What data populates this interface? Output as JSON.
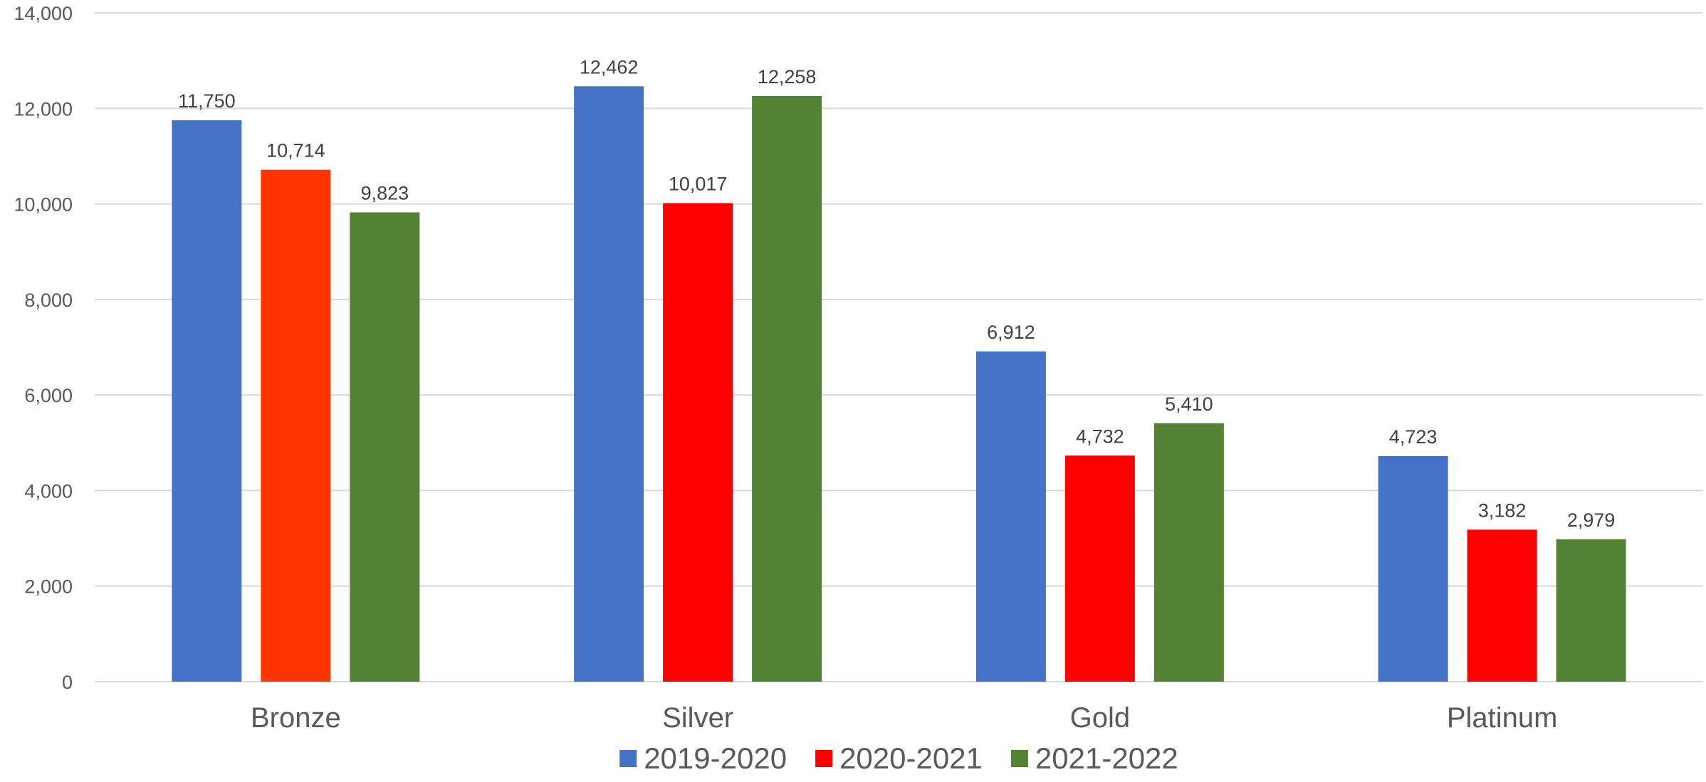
{
  "chart_data": {
    "type": "bar",
    "title": "",
    "xlabel": "",
    "ylabel": "",
    "categories": [
      "Bronze",
      "Silver",
      "Gold",
      "Platinum"
    ],
    "series": [
      {
        "name": "2019-2020",
        "color": "#4472c4",
        "values": [
          11750,
          12462,
          6912,
          4723
        ],
        "labels": [
          "11,750",
          "12,462",
          "6,912",
          "4,723"
        ]
      },
      {
        "name": "2020-2021",
        "color": "#ff0000",
        "bar_colors": [
          "#ff3300",
          "#ff0000",
          "#ff0000",
          "#ff0000"
        ],
        "values": [
          10714,
          10017,
          4732,
          3182
        ],
        "labels": [
          "10,714",
          "10,017",
          "4,732",
          "3,182"
        ]
      },
      {
        "name": "2021-2022",
        "color": "#548235",
        "values": [
          9823,
          12258,
          5410,
          2979
        ],
        "labels": [
          "9,823",
          "12,258",
          "5,410",
          "2,979"
        ]
      }
    ],
    "ylim": [
      0,
      14000
    ],
    "yticks": [
      0,
      2000,
      4000,
      6000,
      8000,
      10000,
      12000,
      14000
    ],
    "ytick_labels": [
      "0",
      "2,000",
      "4,000",
      "6,000",
      "8,000",
      "10,000",
      "12,000",
      "14,000"
    ],
    "grid": true,
    "legend_position": "bottom"
  }
}
